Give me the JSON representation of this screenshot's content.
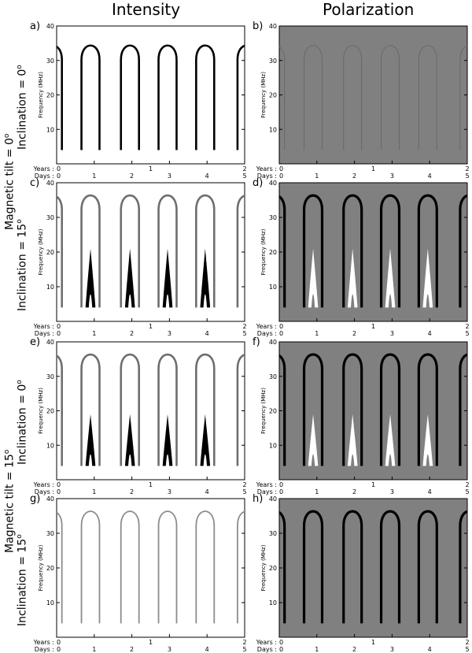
{
  "columns": {
    "left": "Intensity",
    "right": "Polarization"
  },
  "row_labels": {
    "tilt_0": {
      "text": "Magnetic tilt = 0",
      "sup": "o"
    },
    "tilt_15": {
      "text": "Magnetic tilt = 15",
      "sup": "o"
    },
    "incl_a": {
      "text": "Inclination = 0",
      "sup": "o"
    },
    "incl_c": {
      "text": "Inclination = 15",
      "sup": "o"
    },
    "incl_e": {
      "text": "Inclination = 0",
      "sup": "o"
    },
    "incl_g": {
      "text": "Inclination = 15",
      "sup": "o"
    }
  },
  "axis_text": {
    "ylabel": "Frequency (MHz)",
    "years_label": "Years :",
    "days_label": "Days :"
  },
  "colors": {
    "intensity_bg": "#ffffff",
    "polarization_bg": "#808080",
    "medium_stroke": "#6e6e6e",
    "dark": "#000000",
    "white": "#ffffff"
  },
  "chart_data": [
    {
      "id": "a",
      "type": "heatmap",
      "ylim": [
        0,
        40
      ],
      "yticks": [
        10,
        20,
        30,
        40
      ],
      "years_ticks": [
        "0",
        "1",
        "2"
      ],
      "days_ticks": [
        "0",
        "1",
        "2",
        "3",
        "4",
        "5"
      ],
      "arch_top_mhz": 35,
      "arch_bottom_mhz": 4,
      "intensity": "strong",
      "lobes": false
    },
    {
      "id": "b",
      "type": "heatmap",
      "ylim": [
        0,
        40
      ],
      "yticks": [
        10,
        20,
        30,
        40
      ],
      "years_ticks": [
        "0",
        "1",
        "2"
      ],
      "days_ticks": [
        "0",
        "1",
        "2",
        "3",
        "4",
        "5"
      ],
      "arch_top_mhz": 35,
      "arch_bottom_mhz": 4,
      "polarization": "faint",
      "lobes": false
    },
    {
      "id": "c",
      "type": "heatmap",
      "ylim": [
        0,
        40
      ],
      "yticks": [
        10,
        20,
        30,
        40
      ],
      "years_ticks": [
        "0",
        "1",
        "2"
      ],
      "days_ticks": [
        "0",
        "1",
        "2",
        "3",
        "4",
        "5"
      ],
      "arch_top_mhz": 37,
      "arch_bottom_mhz": 4,
      "lobe_top_mhz": 21,
      "intensity": "medium",
      "lobes": true
    },
    {
      "id": "d",
      "type": "heatmap",
      "ylim": [
        0,
        40
      ],
      "yticks": [
        10,
        20,
        30,
        40
      ],
      "years_ticks": [
        "0",
        "1",
        "2"
      ],
      "days_ticks": [
        "0",
        "1",
        "2",
        "3",
        "4",
        "5"
      ],
      "arch_top_mhz": 37,
      "arch_bottom_mhz": 4,
      "lobe_top_mhz": 21,
      "polarization": "arcs negative, lobes positive",
      "lobes": true
    },
    {
      "id": "e",
      "type": "heatmap",
      "ylim": [
        0,
        40
      ],
      "yticks": [
        10,
        20,
        30,
        40
      ],
      "years_ticks": [
        "0",
        "1",
        "2"
      ],
      "days_ticks": [
        "0",
        "1",
        "2",
        "3",
        "4",
        "5"
      ],
      "arch_top_mhz": 37,
      "arch_bottom_mhz": 4,
      "lobe_top_mhz": 19,
      "intensity": "medium",
      "lobes": true
    },
    {
      "id": "f",
      "type": "heatmap",
      "ylim": [
        0,
        40
      ],
      "yticks": [
        10,
        20,
        30,
        40
      ],
      "years_ticks": [
        "0",
        "1",
        "2"
      ],
      "days_ticks": [
        "0",
        "1",
        "2",
        "3",
        "4",
        "5"
      ],
      "arch_top_mhz": 37,
      "arch_bottom_mhz": 4,
      "lobe_top_mhz": 19,
      "polarization": "arcs negative, lobes positive",
      "lobes": true
    },
    {
      "id": "g",
      "type": "heatmap",
      "ylim": [
        0,
        40
      ],
      "yticks": [
        10,
        20,
        30,
        40
      ],
      "years_ticks": [
        "0",
        "1",
        "2"
      ],
      "days_ticks": [
        "0",
        "1",
        "2",
        "3",
        "4",
        "5"
      ],
      "arch_top_mhz": 37,
      "arch_bottom_mhz": 4,
      "intensity": "faint",
      "lobes": false
    },
    {
      "id": "h",
      "type": "heatmap",
      "ylim": [
        0,
        40
      ],
      "yticks": [
        10,
        20,
        30,
        40
      ],
      "years_ticks": [
        "0",
        "1",
        "2"
      ],
      "days_ticks": [
        "0",
        "1",
        "2",
        "3",
        "4",
        "5"
      ],
      "arch_top_mhz": 37,
      "arch_bottom_mhz": 4,
      "polarization": "arcs negative",
      "lobes": false
    }
  ]
}
